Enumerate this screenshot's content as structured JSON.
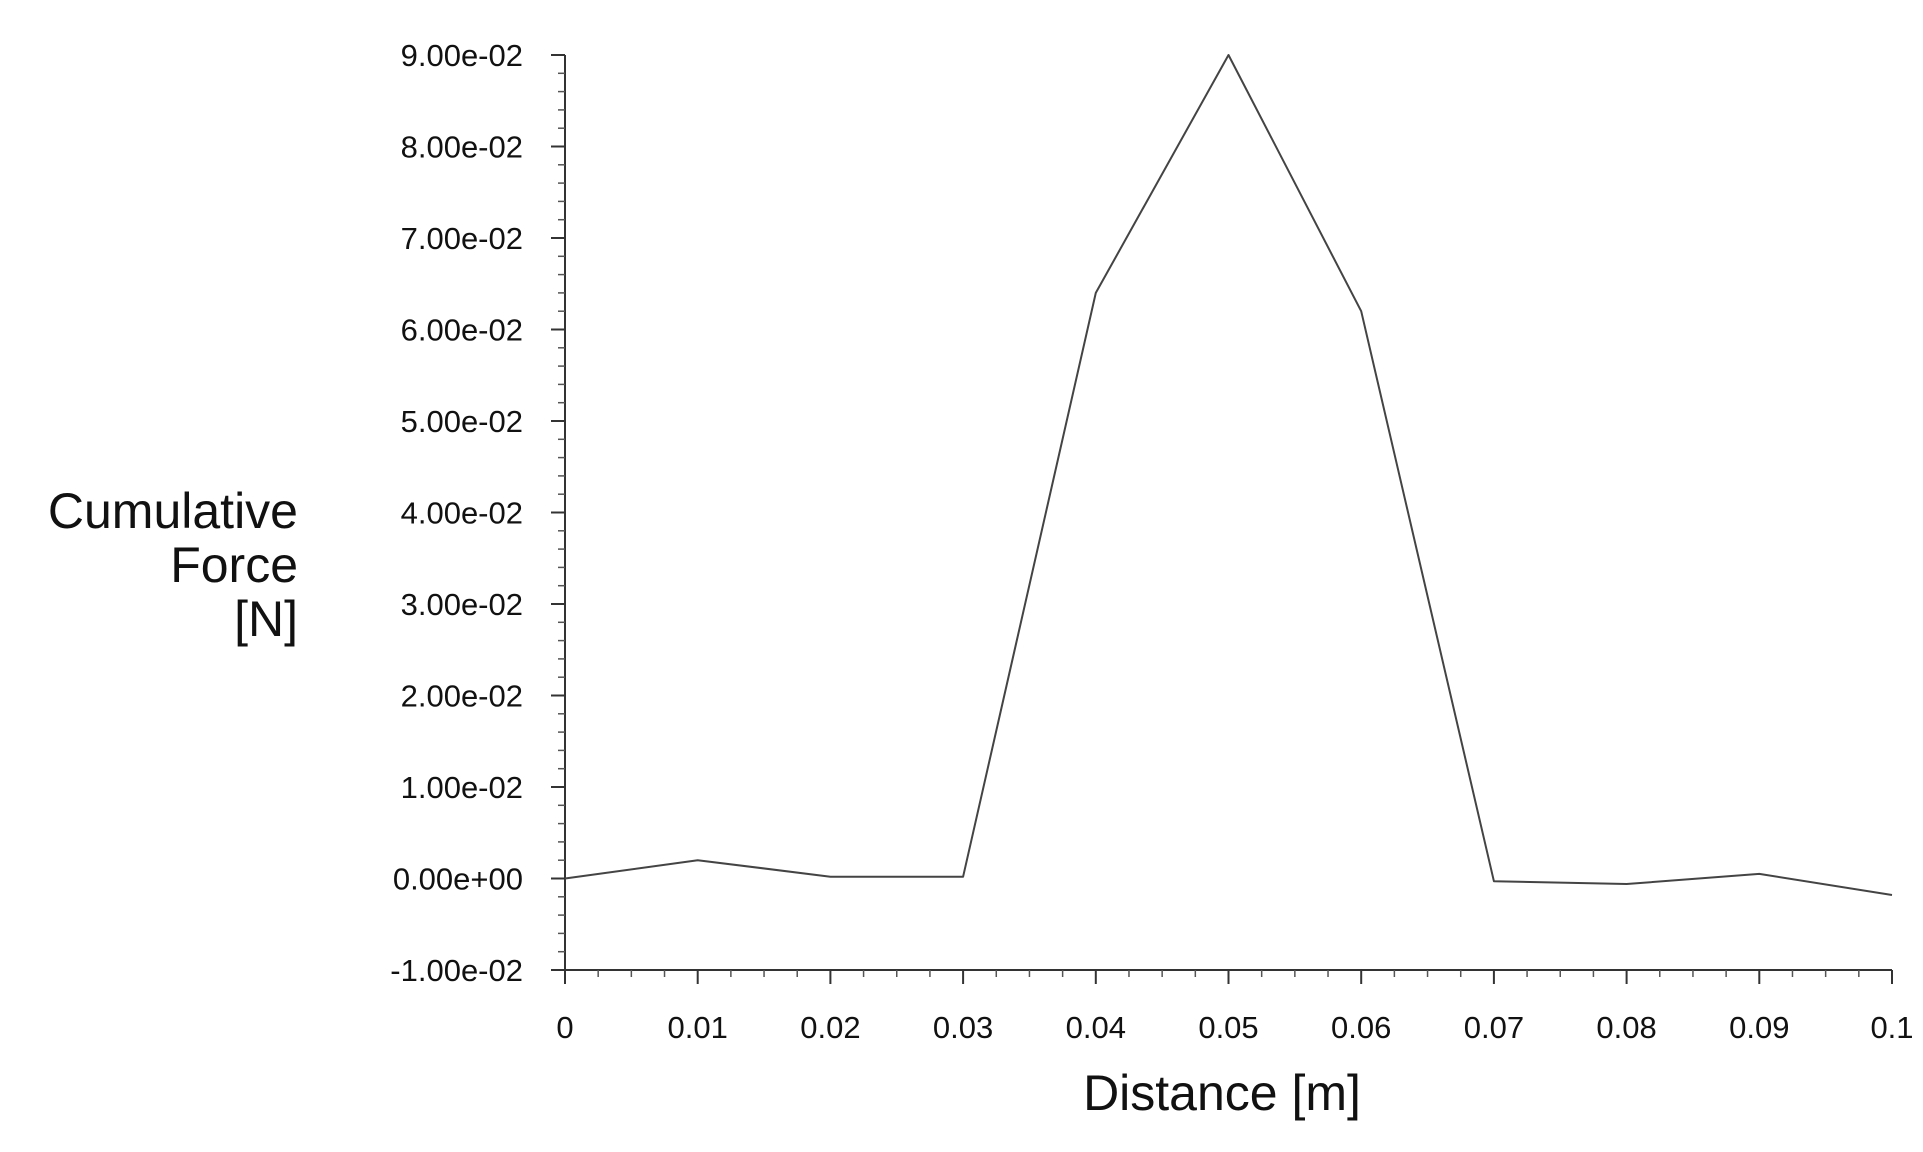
{
  "chart_data": {
    "type": "line",
    "title": "",
    "xlabel": "Distance [m]",
    "ylabel_lines": [
      "Cumulative",
      "Force",
      "[N]"
    ],
    "xlim": [
      0,
      0.1
    ],
    "ylim": [
      -0.01,
      0.09
    ],
    "x_ticks": [
      0,
      0.01,
      0.02,
      0.03,
      0.04,
      0.05,
      0.06,
      0.07,
      0.08,
      0.09,
      0.1
    ],
    "x_tick_labels": [
      "0",
      "0.01",
      "0.02",
      "0.03",
      "0.04",
      "0.05",
      "0.06",
      "0.07",
      "0.08",
      "0.09",
      "0.1"
    ],
    "y_ticks": [
      -0.01,
      0,
      0.01,
      0.02,
      0.03,
      0.04,
      0.05,
      0.06,
      0.07,
      0.08,
      0.09
    ],
    "y_tick_labels": [
      "-1.00e-02",
      "0.00e+00",
      "1.00e-02",
      "2.00e-02",
      "3.00e-02",
      "4.00e-02",
      "5.00e-02",
      "6.00e-02",
      "7.00e-02",
      "8.00e-02",
      "9.00e-02"
    ],
    "grid": false,
    "line_color": "#444444",
    "series": [
      {
        "x": [
          0,
          0.01,
          0.02,
          0.03,
          0.04,
          0.05,
          0.06,
          0.07,
          0.08,
          0.09,
          0.1
        ],
        "y": [
          0.0,
          0.002,
          0.0002,
          0.0002,
          0.064,
          0.09,
          0.062,
          -0.0003,
          -0.0006,
          0.0005,
          -0.0018
        ]
      }
    ]
  }
}
